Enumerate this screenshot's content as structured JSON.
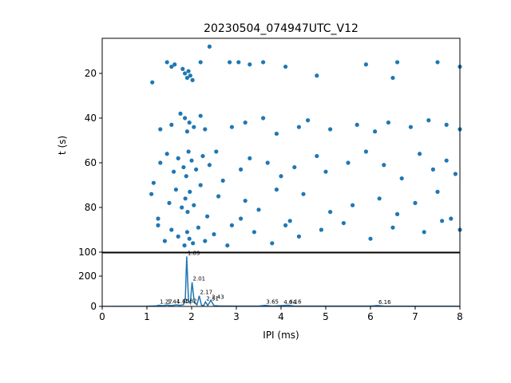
{
  "chart_data": [
    {
      "type": "scatter",
      "title": "20230504_074947UTC_V12",
      "y_label": "t (s)",
      "color": "#1f77b4",
      "xlim": [
        0,
        8
      ],
      "ylim": [
        4.3,
        100
      ],
      "y_inverted": true,
      "yticks": [
        20,
        40,
        60,
        80,
        100
      ],
      "x": [
        1.12,
        1.45,
        1.55,
        1.62,
        1.8,
        1.85,
        1.9,
        1.93,
        1.97,
        2.02,
        2.2,
        2.4,
        2.85,
        3.05,
        3.3,
        3.6,
        4.1,
        4.8,
        5.9,
        6.6,
        6.5,
        7.5,
        8.0,
        1.3,
        1.55,
        1.75,
        1.85,
        1.9,
        1.95,
        2.05,
        2.2,
        2.3,
        2.9,
        3.2,
        3.6,
        3.9,
        4.4,
        4.6,
        5.1,
        5.7,
        6.1,
        6.4,
        6.9,
        7.3,
        7.7,
        8.0,
        1.15,
        1.3,
        1.45,
        1.6,
        1.7,
        1.82,
        1.88,
        1.93,
        2.0,
        2.1,
        2.25,
        2.4,
        2.55,
        2.7,
        3.1,
        3.3,
        3.7,
        4.0,
        4.3,
        4.8,
        5.0,
        5.5,
        5.9,
        6.3,
        6.7,
        7.1,
        7.4,
        7.7,
        7.9,
        1.1,
        1.25,
        1.5,
        1.65,
        1.78,
        1.86,
        1.91,
        1.96,
        2.05,
        2.2,
        2.35,
        2.6,
        2.9,
        3.2,
        3.5,
        3.9,
        4.2,
        4.5,
        5.1,
        5.6,
        6.2,
        6.6,
        7.0,
        7.5,
        7.8,
        1.25,
        1.4,
        1.55,
        1.7,
        1.84,
        1.9,
        1.95,
        2.03,
        2.15,
        2.3,
        2.5,
        2.8,
        3.1,
        3.4,
        3.8,
        4.1,
        4.4,
        4.9,
        5.4,
        6.0,
        6.5,
        7.2,
        7.6,
        8.0
      ],
      "t": [
        24,
        15,
        17,
        16,
        18,
        20,
        22,
        19,
        21,
        23,
        15,
        8,
        15,
        15,
        16,
        15,
        17,
        21,
        16,
        15,
        22,
        15,
        17,
        45,
        43,
        38,
        40,
        46,
        42,
        44,
        39,
        45,
        44,
        42,
        40,
        47,
        44,
        41,
        45,
        43,
        46,
        42,
        44,
        41,
        43,
        45,
        69,
        60,
        56,
        64,
        58,
        62,
        66,
        55,
        59,
        63,
        57,
        61,
        55,
        68,
        63,
        58,
        60,
        66,
        62,
        57,
        64,
        60,
        55,
        61,
        67,
        56,
        63,
        59,
        65,
        74,
        85,
        78,
        72,
        80,
        76,
        82,
        73,
        79,
        70,
        84,
        75,
        88,
        77,
        81,
        72,
        86,
        74,
        82,
        79,
        76,
        83,
        78,
        73,
        85,
        88,
        95,
        90,
        93,
        97,
        91,
        94,
        96,
        89,
        95,
        92,
        97,
        85,
        91,
        96,
        88,
        93,
        90,
        87,
        94,
        89,
        91,
        86,
        90
      ]
    },
    {
      "type": "line",
      "x_label": "IPI (ms)",
      "color": "#1f77b4",
      "xlim": [
        0,
        8
      ],
      "ylim": [
        0,
        353
      ],
      "xticks": [
        0,
        1,
        2,
        3,
        4,
        5,
        6,
        7,
        8
      ],
      "yticks": [
        0,
        200
      ],
      "x": [
        0,
        1.0,
        1.2,
        1.27,
        1.35,
        1.44,
        1.55,
        1.65,
        1.75,
        1.82,
        1.86,
        1.89,
        1.93,
        1.97,
        2.01,
        2.06,
        2.12,
        2.17,
        2.22,
        2.27,
        2.31,
        2.36,
        2.43,
        2.5,
        2.6,
        3.0,
        3.5,
        3.65,
        3.8,
        4.04,
        4.16,
        4.3,
        5.0,
        6.0,
        6.16,
        6.3,
        7.0,
        8.0
      ],
      "y": [
        0,
        1,
        3,
        8,
        4,
        9,
        5,
        10,
        7,
        12,
        60,
        330,
        40,
        20,
        160,
        25,
        10,
        70,
        8,
        6,
        30,
        6,
        40,
        5,
        3,
        2,
        2,
        7,
        2,
        6,
        8,
        2,
        2,
        2,
        6,
        2,
        1,
        1
      ],
      "annotations": [
        {
          "x": 1.27,
          "y": 8,
          "text": "1.27"
        },
        {
          "x": 1.44,
          "y": 9,
          "text": "1.44"
        },
        {
          "x": 1.65,
          "y": 10,
          "text": "1.65"
        },
        {
          "x": 1.82,
          "y": 12,
          "text": "1.82"
        },
        {
          "x": 1.89,
          "y": 330,
          "text": "1.89"
        },
        {
          "x": 2.01,
          "y": 160,
          "text": "2.01"
        },
        {
          "x": 2.17,
          "y": 70,
          "text": "2.17"
        },
        {
          "x": 2.31,
          "y": 30,
          "text": "2.31"
        },
        {
          "x": 2.43,
          "y": 40,
          "text": "2.43"
        },
        {
          "x": 3.65,
          "y": 7,
          "text": "3.65"
        },
        {
          "x": 4.04,
          "y": 6,
          "text": "4.04"
        },
        {
          "x": 4.16,
          "y": 8,
          "text": "4.16"
        },
        {
          "x": 6.16,
          "y": 6,
          "text": "6.16"
        }
      ]
    }
  ]
}
